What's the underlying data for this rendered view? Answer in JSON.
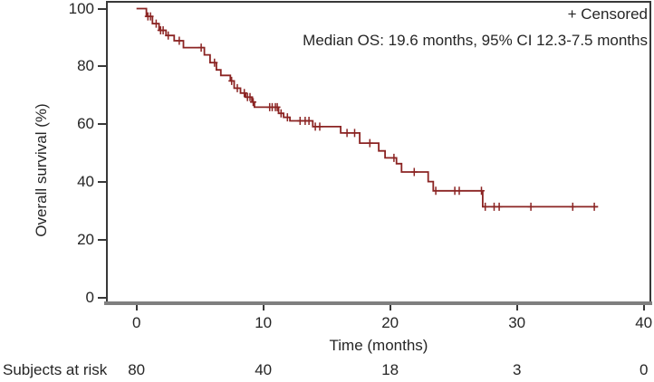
{
  "figure": {
    "legend_label": "+ Censored",
    "annotation": "Median OS: 19.6 months, 95% CI 12.3-7.5 months",
    "y_axis_title": "Overall survival (%)",
    "x_axis_title": "Time (months)",
    "risk_row_label": "Subjects at risk",
    "curve_color": "#8B2423",
    "text_color": "#262626",
    "frame_color": "#383838",
    "baseline_color": "#7F7F7F"
  },
  "chart_data": {
    "type": "line",
    "subtype": "kaplan_meier_step",
    "title": "",
    "xlabel": "Time (months)",
    "ylabel": "Overall survival (%)",
    "xlim": [
      0,
      40
    ],
    "ylim": [
      0,
      100
    ],
    "x_ticks": [
      0,
      10,
      20,
      30,
      40
    ],
    "y_ticks": [
      0,
      20,
      40,
      60,
      80,
      100
    ],
    "grid": false,
    "legend_position": "top-right-inside",
    "annotations": [
      "Median OS: 19.6 months, 95% CI 12.3-7.5 months",
      "+ Censored"
    ],
    "median_os_months": 19.6,
    "ci_95": "12.3-7.5",
    "series": [
      {
        "name": "Overall survival",
        "color": "#8B2423",
        "steps": [
          [
            0,
            100
          ],
          [
            0.78,
            97.3
          ],
          [
            1.26,
            94.8
          ],
          [
            1.78,
            92.5
          ],
          [
            2.33,
            90.7
          ],
          [
            2.97,
            88.9
          ],
          [
            3.7,
            86.5
          ],
          [
            5.35,
            84
          ],
          [
            5.8,
            81.3
          ],
          [
            6.3,
            78.8
          ],
          [
            6.65,
            76.9
          ],
          [
            7.4,
            75
          ],
          [
            7.7,
            72.5
          ],
          [
            8.2,
            70.8
          ],
          [
            8.6,
            69.4
          ],
          [
            9.1,
            67.7
          ],
          [
            9.3,
            65.9
          ],
          [
            11.2,
            63.8
          ],
          [
            11.6,
            62.4
          ],
          [
            12.1,
            61.2
          ],
          [
            13.9,
            59.2
          ],
          [
            16.1,
            57
          ],
          [
            17.6,
            53.5
          ],
          [
            19.1,
            50.8
          ],
          [
            19.6,
            48.4
          ],
          [
            20.5,
            46.4
          ],
          [
            20.9,
            43.5
          ],
          [
            23,
            40.2
          ],
          [
            23.4,
            37
          ],
          [
            27.3,
            31.5
          ]
        ],
        "end_time": 36.4,
        "censored": [
          [
            0.9,
            97.3
          ],
          [
            1.1,
            97.3
          ],
          [
            1.55,
            94.8
          ],
          [
            1.9,
            92.5
          ],
          [
            2.1,
            92.5
          ],
          [
            2.5,
            90.7
          ],
          [
            3.37,
            88.9
          ],
          [
            5.1,
            86.5
          ],
          [
            6.15,
            81.3
          ],
          [
            7.5,
            75
          ],
          [
            7.95,
            72.5
          ],
          [
            8.5,
            70.8
          ],
          [
            8.75,
            69.4
          ],
          [
            8.95,
            69.4
          ],
          [
            9.2,
            67.7
          ],
          [
            10.5,
            65.9
          ],
          [
            10.7,
            65.9
          ],
          [
            10.95,
            65.9
          ],
          [
            11.1,
            65.9
          ],
          [
            11.4,
            63.8
          ],
          [
            11.9,
            62.4
          ],
          [
            12.9,
            61.2
          ],
          [
            13.3,
            61.2
          ],
          [
            13.6,
            61.2
          ],
          [
            14.1,
            59.2
          ],
          [
            14.45,
            59.2
          ],
          [
            16.6,
            57
          ],
          [
            17.2,
            57
          ],
          [
            18.4,
            53.5
          ],
          [
            20.3,
            48.4
          ],
          [
            21.9,
            43.5
          ],
          [
            23.6,
            37
          ],
          [
            25.1,
            37
          ],
          [
            25.45,
            37
          ],
          [
            27.2,
            37
          ],
          [
            27.5,
            31.5
          ],
          [
            28.2,
            31.5
          ],
          [
            28.6,
            31.5
          ],
          [
            31.1,
            31.5
          ],
          [
            34.4,
            31.5
          ],
          [
            36.1,
            31.5
          ]
        ]
      }
    ],
    "subjects_at_risk": {
      "label": "Subjects at risk",
      "times": [
        0,
        10,
        20,
        30,
        40
      ],
      "counts": [
        80,
        40,
        18,
        3,
        0
      ]
    }
  }
}
